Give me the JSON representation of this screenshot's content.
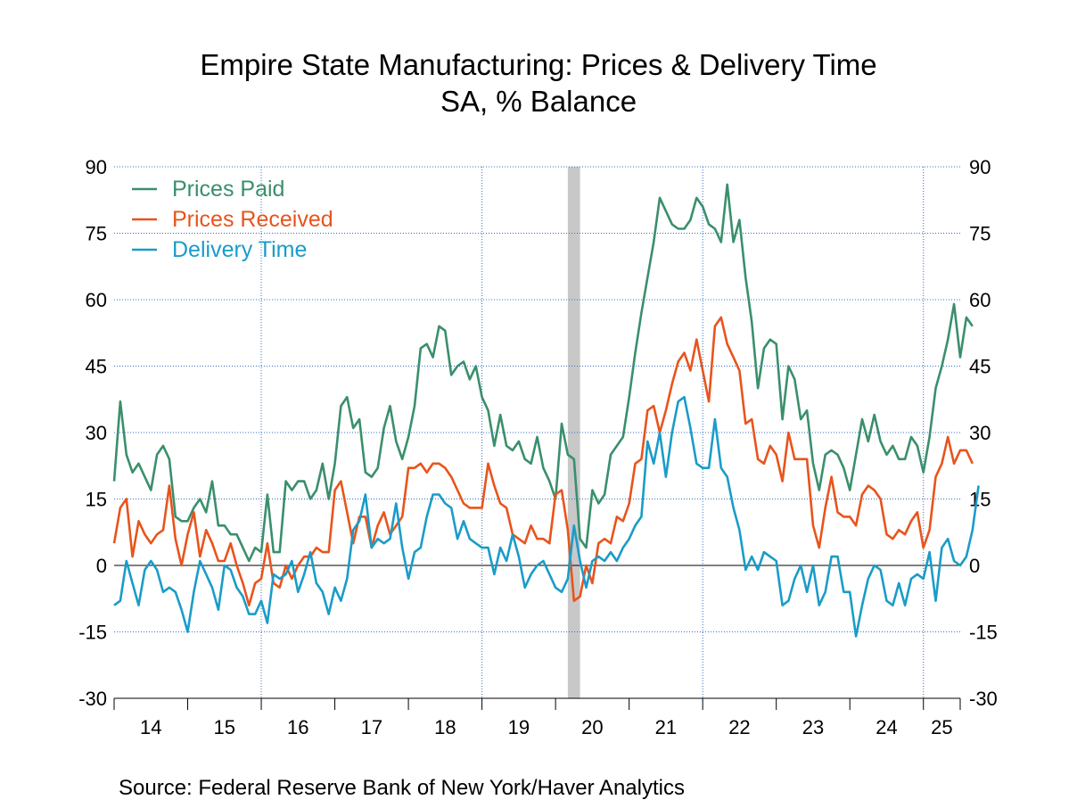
{
  "title": "Empire State Manufacturing: Prices & Delivery Time",
  "subtitle": "SA, % Balance",
  "source": "Source:  Federal Reserve Bank of New York/Haver Analytics",
  "chart_data": {
    "type": "line",
    "title": "Empire State Manufacturing: Prices & Delivery Time",
    "subtitle": "SA, % Balance",
    "ylim": [
      -30,
      90
    ],
    "yticks": [
      "90",
      "75",
      "60",
      "45",
      "30",
      "15",
      "0",
      "-15",
      "-30"
    ],
    "yticks_right": [
      "90",
      "75",
      "60",
      "45",
      "30",
      "15",
      "0",
      "-15",
      "-30"
    ],
    "x_range": [
      "2014-01",
      "2025-07"
    ],
    "x_tick_labels": [
      "14",
      "15",
      "16",
      "17",
      "18",
      "19",
      "20",
      "21",
      "22",
      "23",
      "24",
      "25"
    ],
    "grid": true,
    "legend_position": "top-left",
    "recession_shading": {
      "start": "2020-03",
      "end": "2020-04",
      "color": "#c8c8c8"
    },
    "series": [
      {
        "name": "Prices Paid",
        "color": "#3a8f6c",
        "x_start": "2014-01",
        "values": [
          19,
          37,
          25,
          21,
          23,
          20,
          17,
          25,
          27,
          24,
          11,
          10,
          10,
          13,
          15,
          12,
          19,
          9,
          9,
          7,
          7,
          4,
          1,
          4,
          3,
          16,
          3,
          3,
          19,
          17,
          19,
          19,
          15,
          17,
          23,
          15,
          23,
          36,
          38,
          31,
          33,
          21,
          20,
          22,
          31,
          36,
          28,
          24,
          29,
          36,
          49,
          50,
          47,
          54,
          53,
          43,
          45,
          46,
          42,
          45,
          38,
          35,
          27,
          34,
          27,
          26,
          28,
          24,
          23,
          29,
          22,
          19,
          15,
          32,
          25,
          24,
          6,
          4,
          17,
          14,
          16,
          25,
          27,
          29,
          38,
          48,
          57,
          65,
          73,
          83,
          80,
          77,
          76,
          76,
          78,
          83,
          81,
          77,
          76,
          73,
          86,
          73,
          78,
          65,
          55,
          40,
          49,
          51,
          50,
          33,
          45,
          42,
          33,
          35,
          23,
          17,
          25,
          26,
          25,
          22,
          17,
          25,
          33,
          28,
          34,
          28,
          25,
          27,
          24,
          24,
          29,
          27,
          21,
          29,
          40,
          45,
          51,
          59,
          47,
          56,
          54
        ]
      },
      {
        "name": "Prices Received",
        "color": "#e8541c",
        "x_start": "2014-01",
        "values": [
          5,
          13,
          15,
          2,
          10,
          7,
          5,
          7,
          8,
          18,
          6,
          0,
          7,
          12,
          2,
          8,
          5,
          1,
          1,
          5,
          0,
          -4,
          -9,
          -4,
          -3,
          5,
          -4,
          -5,
          0,
          -3,
          0,
          2,
          2,
          4,
          3,
          3,
          17,
          19,
          12,
          5,
          11,
          11,
          4,
          9,
          12,
          7,
          9,
          11,
          22,
          22,
          23,
          21,
          23,
          23,
          22,
          20,
          17,
          14,
          13,
          13,
          13,
          23,
          18,
          14,
          13,
          7,
          6,
          5,
          9,
          6,
          6,
          5,
          16,
          17,
          8,
          -8,
          -7,
          0,
          -4,
          5,
          6,
          5,
          11,
          10,
          14,
          23,
          24,
          35,
          36,
          30,
          35,
          41,
          46,
          48,
          44,
          51,
          44,
          37,
          54,
          56,
          50,
          47,
          44,
          32,
          33,
          24,
          23,
          27,
          25,
          19,
          30,
          24,
          24,
          24,
          9,
          4,
          13,
          20,
          12,
          11,
          11,
          9,
          16,
          18,
          17,
          15,
          7,
          6,
          8,
          7,
          10,
          12,
          4,
          8,
          20,
          23,
          29,
          23,
          26,
          26,
          23
        ]
      },
      {
        "name": "Delivery Time",
        "color": "#1a9cc8",
        "x_start": "2014-01",
        "values": [
          -9,
          -8,
          1,
          -4,
          -9,
          -1,
          1,
          -1,
          -6,
          -5,
          -6,
          -10,
          -15,
          -6,
          1,
          -2,
          -5,
          -10,
          0,
          -1,
          -5,
          -7,
          -11,
          -11,
          -8,
          -13,
          -2,
          -3,
          -2,
          1,
          -6,
          -2,
          3,
          -4,
          -6,
          -11,
          -5,
          -8,
          -3,
          8,
          10,
          16,
          4,
          6,
          5,
          6,
          14,
          4,
          -3,
          3,
          4,
          11,
          16,
          16,
          14,
          13,
          6,
          10,
          6,
          5,
          4,
          4,
          -2,
          4,
          1,
          7,
          2,
          -5,
          -2,
          0,
          1,
          -2,
          -5,
          -6,
          -3,
          9,
          1,
          -5,
          1,
          2,
          1,
          3,
          1,
          4,
          6,
          9,
          11,
          28,
          23,
          30,
          20,
          30,
          37,
          38,
          31,
          23,
          22,
          22,
          33,
          22,
          20,
          13,
          8,
          -1,
          2,
          -1,
          3,
          2,
          1,
          -9,
          -8,
          -3,
          0,
          -6,
          0,
          -9,
          -6,
          2,
          2,
          -6,
          -6,
          -16,
          -9,
          -3,
          0,
          -1,
          -8,
          -9,
          -4,
          -9,
          -3,
          -2,
          -3,
          3,
          -8,
          4,
          6,
          1,
          0,
          2,
          8,
          18
        ]
      }
    ]
  }
}
